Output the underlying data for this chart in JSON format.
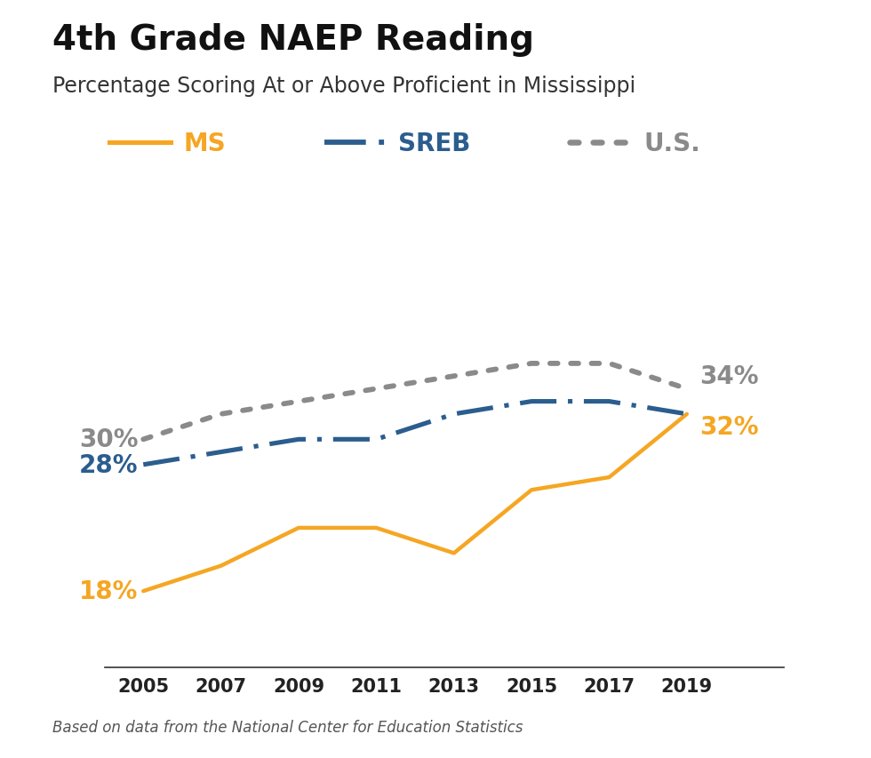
{
  "title": "4th Grade NAEP Reading",
  "subtitle": "Percentage Scoring At or Above Proficient in Mississippi",
  "footnote": "Based on data from the National Center for Education Statistics",
  "years": [
    2005,
    2007,
    2009,
    2011,
    2013,
    2015,
    2017,
    2019
  ],
  "ms": [
    18,
    20,
    23,
    23,
    21,
    26,
    27,
    32
  ],
  "sreb": [
    28,
    29,
    30,
    30,
    32,
    33,
    33,
    32
  ],
  "us": [
    30,
    32,
    33,
    34,
    35,
    36,
    36,
    34
  ],
  "ms_color": "#F5A623",
  "sreb_color": "#2B5D8E",
  "us_color": "#8A8A8A",
  "ms_label": "MS",
  "sreb_label": "SREB",
  "us_label": "U.S.",
  "ms_start_label": "18%",
  "sreb_start_label": "28%",
  "us_start_label": "30%",
  "ms_end_label": "32%",
  "us_end_label": "34%",
  "ylim": [
    12,
    42
  ],
  "xlim": [
    2004.0,
    2021.5
  ],
  "linewidth": 3.2,
  "background_color": "#ffffff",
  "title_fontsize": 28,
  "subtitle_fontsize": 17,
  "label_fontsize": 20,
  "tick_fontsize": 15,
  "legend_fontsize": 20,
  "footnote_fontsize": 12
}
